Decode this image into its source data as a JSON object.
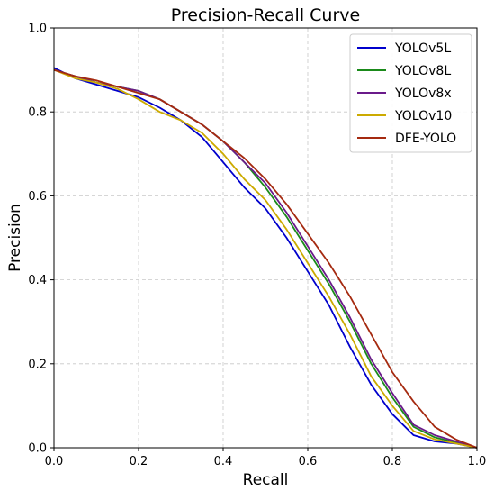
{
  "chart_data": {
    "type": "line",
    "title": "Precision-Recall Curve",
    "xlabel": "Recall",
    "ylabel": "Precision",
    "xlim": [
      0.0,
      1.0
    ],
    "ylim": [
      0.0,
      1.0
    ],
    "xticks": [
      "0.0",
      "0.2",
      "0.4",
      "0.6",
      "0.8",
      "1.0"
    ],
    "yticks": [
      "0.0",
      "0.2",
      "0.4",
      "0.6",
      "0.8",
      "1.0"
    ],
    "grid": true,
    "legend_position": "top-right",
    "series": [
      {
        "name": "YOLOv5L",
        "color": "#0000cc",
        "x": [
          0.0,
          0.05,
          0.1,
          0.15,
          0.2,
          0.25,
          0.3,
          0.35,
          0.4,
          0.45,
          0.5,
          0.55,
          0.6,
          0.65,
          0.7,
          0.75,
          0.8,
          0.85,
          0.9,
          0.95,
          1.0
        ],
        "y": [
          0.905,
          0.88,
          0.865,
          0.85,
          0.835,
          0.81,
          0.78,
          0.74,
          0.68,
          0.62,
          0.57,
          0.5,
          0.42,
          0.34,
          0.24,
          0.15,
          0.08,
          0.03,
          0.015,
          0.01,
          0.0
        ]
      },
      {
        "name": "YOLOv8L",
        "color": "#1a8a1a",
        "x": [
          0.0,
          0.05,
          0.1,
          0.15,
          0.2,
          0.25,
          0.3,
          0.35,
          0.4,
          0.45,
          0.5,
          0.55,
          0.6,
          0.65,
          0.7,
          0.75,
          0.8,
          0.85,
          0.9,
          0.95,
          1.0
        ],
        "y": [
          0.9,
          0.885,
          0.87,
          0.86,
          0.85,
          0.83,
          0.8,
          0.77,
          0.73,
          0.68,
          0.62,
          0.55,
          0.47,
          0.39,
          0.3,
          0.2,
          0.12,
          0.05,
          0.025,
          0.012,
          0.0
        ]
      },
      {
        "name": "YOLOv8x",
        "color": "#6a1a8a",
        "x": [
          0.0,
          0.05,
          0.1,
          0.15,
          0.2,
          0.25,
          0.3,
          0.35,
          0.4,
          0.45,
          0.5,
          0.55,
          0.6,
          0.65,
          0.7,
          0.75,
          0.8,
          0.85,
          0.9,
          0.95,
          1.0
        ],
        "y": [
          0.9,
          0.885,
          0.87,
          0.86,
          0.85,
          0.83,
          0.8,
          0.77,
          0.73,
          0.68,
          0.63,
          0.56,
          0.48,
          0.4,
          0.31,
          0.21,
          0.13,
          0.055,
          0.03,
          0.015,
          0.0
        ]
      },
      {
        "name": "YOLOv10",
        "color": "#ccaa00",
        "x": [
          0.0,
          0.05,
          0.1,
          0.15,
          0.2,
          0.25,
          0.3,
          0.35,
          0.4,
          0.45,
          0.5,
          0.55,
          0.6,
          0.65,
          0.7,
          0.75,
          0.8,
          0.85,
          0.9,
          0.95,
          1.0
        ],
        "y": [
          0.9,
          0.88,
          0.87,
          0.855,
          0.83,
          0.8,
          0.78,
          0.75,
          0.7,
          0.64,
          0.59,
          0.52,
          0.44,
          0.36,
          0.27,
          0.17,
          0.1,
          0.04,
          0.02,
          0.01,
          0.0
        ]
      },
      {
        "name": "DFE-YOLO",
        "color": "#a52a10",
        "x": [
          0.0,
          0.05,
          0.1,
          0.15,
          0.2,
          0.25,
          0.3,
          0.35,
          0.4,
          0.45,
          0.5,
          0.55,
          0.6,
          0.65,
          0.7,
          0.75,
          0.8,
          0.85,
          0.9,
          0.95,
          1.0
        ],
        "y": [
          0.9,
          0.885,
          0.875,
          0.86,
          0.845,
          0.83,
          0.8,
          0.77,
          0.73,
          0.69,
          0.64,
          0.58,
          0.51,
          0.44,
          0.36,
          0.27,
          0.18,
          0.11,
          0.05,
          0.02,
          0.0
        ]
      }
    ]
  }
}
